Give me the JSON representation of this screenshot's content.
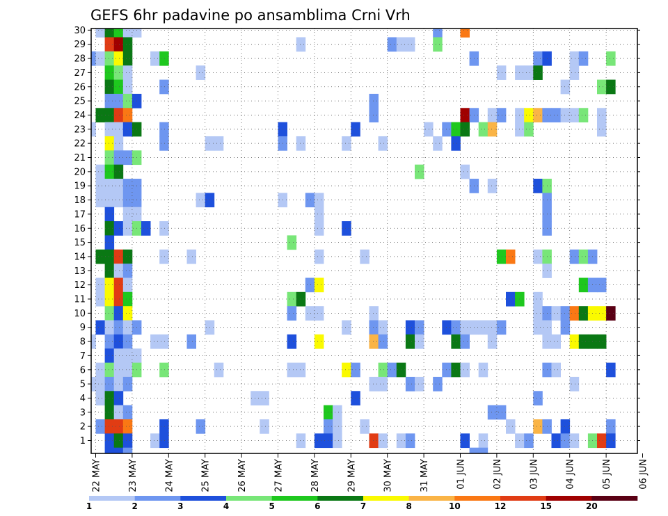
{
  "chart_data": {
    "type": "heatmap",
    "title": "GEFS 6hr padavine po ansamblima Crni Vrh",
    "xlabel": "",
    "ylabel": "",
    "x_tick_labels": [
      "22 MAY",
      "23 MAY",
      "24 MAY",
      "25 MAY",
      "26 MAY",
      "27 MAY",
      "28 MAY",
      "29 MAY",
      "30 MAY",
      "31 MAY",
      "01 JUN",
      "02 JUN",
      "03 JUN",
      "04 JUN",
      "05 JUN",
      "06 JUN"
    ],
    "y_tick_labels": [
      "1",
      "2",
      "3",
      "4",
      "5",
      "6",
      "7",
      "8",
      "9",
      "10",
      "11",
      "12",
      "13",
      "14",
      "15",
      "16",
      "17",
      "18",
      "19",
      "20",
      "21",
      "22",
      "23",
      "24",
      "25",
      "26",
      "27",
      "28",
      "29",
      "30"
    ],
    "ylim": [
      1,
      30
    ],
    "grid": true,
    "columns_per_day": 4,
    "legend_placement": "bottom",
    "legend": {
      "boundaries": [
        "1",
        "2",
        "3",
        "4",
        "5",
        "6",
        "7",
        "8",
        "10",
        "12",
        "15",
        "20"
      ],
      "colors": [
        "#b4c8f5",
        "#6e96f0",
        "#1e50dc",
        "#78e678",
        "#1ec81e",
        "#0a7814",
        "#fafa00",
        "#fab446",
        "#fa7814",
        "#e13c14",
        "#a00000",
        "#5a0014"
      ]
    },
    "cells": [
      [
        30,
        3,
        0
      ],
      [
        30,
        4,
        8
      ],
      [
        30,
        5,
        3
      ],
      [
        30,
        7,
        1
      ],
      [
        30,
        10,
        2
      ],
      [
        30,
        11,
        3
      ],
      [
        30,
        24,
        4
      ],
      [
        30,
        25,
        1
      ],
      [
        30,
        28,
        0
      ],
      [
        30,
        31,
        0
      ],
      [
        30,
        32,
        2
      ],
      [
        30,
        35,
        2
      ],
      [
        30,
        36,
        3
      ],
      [
        30,
        44,
        2
      ],
      [
        30,
        45,
        0
      ],
      [
        30,
        46,
        0
      ],
      [
        29,
        2,
        0
      ],
      [
        29,
        3,
        5
      ],
      [
        29,
        4,
        4
      ],
      [
        29,
        5,
        0
      ],
      [
        29,
        6,
        0
      ],
      [
        29,
        39,
        1
      ],
      [
        29,
        42,
        8
      ],
      [
        28,
        3,
        9
      ],
      [
        28,
        4,
        10
      ],
      [
        28,
        5,
        5
      ],
      [
        28,
        24,
        0
      ],
      [
        28,
        34,
        1
      ],
      [
        28,
        35,
        0
      ],
      [
        28,
        36,
        0
      ],
      [
        28,
        39,
        3
      ],
      [
        27,
        1,
        1
      ],
      [
        27,
        2,
        0
      ],
      [
        27,
        3,
        3
      ],
      [
        27,
        4,
        6
      ],
      [
        27,
        5,
        5
      ],
      [
        27,
        8,
        0
      ],
      [
        27,
        9,
        4
      ],
      [
        27,
        43,
        1
      ],
      [
        27,
        50,
        1
      ],
      [
        27,
        51,
        2
      ],
      [
        27,
        54,
        0
      ],
      [
        27,
        55,
        1
      ],
      [
        27,
        58,
        3
      ],
      [
        26,
        3,
        4
      ],
      [
        26,
        4,
        3
      ],
      [
        26,
        5,
        0
      ],
      [
        26,
        13,
        0
      ],
      [
        26,
        46,
        0
      ],
      [
        26,
        48,
        0
      ],
      [
        26,
        49,
        0
      ],
      [
        26,
        50,
        5
      ],
      [
        26,
        54,
        0
      ],
      [
        25,
        3,
        5
      ],
      [
        25,
        4,
        4
      ],
      [
        25,
        5,
        0
      ],
      [
        25,
        9,
        1
      ],
      [
        25,
        53,
        0
      ],
      [
        25,
        57,
        3
      ],
      [
        25,
        58,
        5
      ],
      [
        24,
        3,
        1
      ],
      [
        24,
        4,
        1
      ],
      [
        24,
        5,
        3
      ],
      [
        24,
        6,
        2
      ],
      [
        24,
        32,
        1
      ],
      [
        23,
        2,
        5
      ],
      [
        23,
        3,
        5
      ],
      [
        23,
        4,
        9
      ],
      [
        23,
        5,
        8
      ],
      [
        23,
        32,
        1
      ],
      [
        23,
        42,
        10
      ],
      [
        23,
        43,
        1
      ],
      [
        23,
        45,
        0
      ],
      [
        23,
        46,
        1
      ],
      [
        23,
        48,
        0
      ],
      [
        23,
        49,
        6
      ],
      [
        23,
        50,
        7
      ],
      [
        23,
        51,
        1
      ],
      [
        23,
        52,
        1
      ],
      [
        23,
        53,
        0
      ],
      [
        23,
        54,
        0
      ],
      [
        23,
        55,
        3
      ],
      [
        23,
        57,
        0
      ],
      [
        22,
        1,
        0
      ],
      [
        22,
        3,
        0
      ],
      [
        22,
        4,
        0
      ],
      [
        22,
        5,
        2
      ],
      [
        22,
        6,
        5
      ],
      [
        22,
        9,
        1
      ],
      [
        22,
        22,
        2
      ],
      [
        22,
        30,
        2
      ],
      [
        22,
        38,
        0
      ],
      [
        22,
        40,
        1
      ],
      [
        22,
        41,
        4
      ],
      [
        22,
        42,
        5
      ],
      [
        22,
        44,
        3
      ],
      [
        22,
        45,
        7
      ],
      [
        22,
        48,
        0
      ],
      [
        22,
        49,
        3
      ],
      [
        22,
        57,
        0
      ],
      [
        21,
        3,
        6
      ],
      [
        21,
        4,
        0
      ],
      [
        21,
        9,
        1
      ],
      [
        21,
        14,
        0
      ],
      [
        21,
        15,
        0
      ],
      [
        21,
        22,
        1
      ],
      [
        21,
        24,
        0
      ],
      [
        21,
        29,
        0
      ],
      [
        21,
        33,
        0
      ],
      [
        21,
        39,
        0
      ],
      [
        21,
        41,
        2
      ],
      [
        20,
        3,
        3
      ],
      [
        20,
        4,
        1
      ],
      [
        20,
        5,
        1
      ],
      [
        20,
        6,
        3
      ],
      [
        19,
        2,
        0
      ],
      [
        19,
        3,
        4
      ],
      [
        19,
        4,
        5
      ],
      [
        19,
        37,
        3
      ],
      [
        19,
        42,
        0
      ],
      [
        18,
        2,
        0
      ],
      [
        18,
        3,
        0
      ],
      [
        18,
        4,
        0
      ],
      [
        18,
        5,
        1
      ],
      [
        18,
        6,
        1
      ],
      [
        18,
        43,
        1
      ],
      [
        18,
        45,
        0
      ],
      [
        18,
        50,
        2
      ],
      [
        18,
        51,
        3
      ],
      [
        17,
        2,
        0
      ],
      [
        17,
        3,
        0
      ],
      [
        17,
        4,
        0
      ],
      [
        17,
        5,
        1
      ],
      [
        17,
        6,
        1
      ],
      [
        17,
        13,
        0
      ],
      [
        17,
        14,
        2
      ],
      [
        17,
        22,
        0
      ],
      [
        17,
        25,
        1
      ],
      [
        17,
        26,
        0
      ],
      [
        17,
        51,
        1
      ],
      [
        16,
        3,
        2
      ],
      [
        16,
        5,
        0
      ],
      [
        16,
        6,
        0
      ],
      [
        16,
        26,
        0
      ],
      [
        16,
        51,
        1
      ],
      [
        15,
        3,
        5
      ],
      [
        15,
        4,
        2
      ],
      [
        15,
        5,
        0
      ],
      [
        15,
        6,
        3
      ],
      [
        15,
        7,
        2
      ],
      [
        15,
        9,
        0
      ],
      [
        15,
        26,
        0
      ],
      [
        15,
        29,
        2
      ],
      [
        15,
        51,
        1
      ],
      [
        14,
        3,
        2
      ],
      [
        14,
        23,
        3
      ],
      [
        13,
        2,
        5
      ],
      [
        13,
        3,
        5
      ],
      [
        13,
        4,
        9
      ],
      [
        13,
        5,
        5
      ],
      [
        13,
        9,
        0
      ],
      [
        13,
        12,
        0
      ],
      [
        13,
        26,
        0
      ],
      [
        13,
        31,
        0
      ],
      [
        13,
        46,
        4
      ],
      [
        13,
        47,
        8
      ],
      [
        13,
        50,
        0
      ],
      [
        13,
        51,
        3
      ],
      [
        13,
        54,
        1
      ],
      [
        13,
        55,
        3
      ],
      [
        13,
        56,
        1
      ],
      [
        12,
        3,
        5
      ],
      [
        12,
        4,
        0
      ],
      [
        12,
        5,
        1
      ],
      [
        12,
        51,
        0
      ],
      [
        11,
        2,
        0
      ],
      [
        11,
        3,
        6
      ],
      [
        11,
        4,
        9
      ],
      [
        11,
        5,
        0
      ],
      [
        11,
        25,
        1
      ],
      [
        11,
        26,
        6
      ],
      [
        11,
        55,
        4
      ],
      [
        11,
        56,
        1
      ],
      [
        11,
        57,
        1
      ],
      [
        10,
        2,
        0
      ],
      [
        10,
        3,
        6
      ],
      [
        10,
        4,
        9
      ],
      [
        10,
        5,
        4
      ],
      [
        10,
        23,
        3
      ],
      [
        10,
        24,
        5
      ],
      [
        10,
        47,
        2
      ],
      [
        10,
        48,
        4
      ],
      [
        10,
        50,
        0
      ],
      [
        9,
        0,
        1
      ],
      [
        9,
        3,
        3
      ],
      [
        9,
        4,
        2
      ],
      [
        9,
        5,
        6
      ],
      [
        9,
        23,
        1
      ],
      [
        9,
        25,
        0
      ],
      [
        9,
        26,
        0
      ],
      [
        9,
        32,
        0
      ],
      [
        9,
        50,
        0
      ],
      [
        9,
        51,
        1
      ],
      [
        9,
        52,
        0
      ],
      [
        9,
        53,
        1
      ],
      [
        9,
        54,
        8
      ],
      [
        9,
        55,
        5
      ],
      [
        9,
        56,
        6
      ],
      [
        9,
        57,
        6
      ],
      [
        9,
        58,
        11
      ],
      [
        8,
        2,
        2
      ],
      [
        8,
        3,
        0
      ],
      [
        8,
        4,
        1
      ],
      [
        8,
        5,
        0
      ],
      [
        8,
        6,
        1
      ],
      [
        8,
        14,
        0
      ],
      [
        8,
        29,
        0
      ],
      [
        8,
        32,
        1
      ],
      [
        8,
        33,
        0
      ],
      [
        8,
        36,
        2
      ],
      [
        8,
        37,
        1
      ],
      [
        8,
        40,
        2
      ],
      [
        8,
        41,
        1
      ],
      [
        8,
        42,
        0
      ],
      [
        8,
        43,
        0
      ],
      [
        8,
        44,
        0
      ],
      [
        8,
        45,
        0
      ],
      [
        8,
        46,
        1
      ],
      [
        8,
        50,
        0
      ],
      [
        8,
        51,
        0
      ],
      [
        8,
        53,
        1
      ],
      [
        7,
        1,
        0
      ],
      [
        7,
        3,
        1
      ],
      [
        7,
        4,
        2
      ],
      [
        7,
        5,
        1
      ],
      [
        7,
        8,
        0
      ],
      [
        7,
        9,
        0
      ],
      [
        7,
        12,
        1
      ],
      [
        7,
        23,
        2
      ],
      [
        7,
        26,
        6
      ],
      [
        7,
        32,
        7
      ],
      [
        7,
        33,
        1
      ],
      [
        7,
        36,
        5
      ],
      [
        7,
        37,
        0
      ],
      [
        7,
        41,
        5
      ],
      [
        7,
        42,
        1
      ],
      [
        7,
        45,
        0
      ],
      [
        7,
        51,
        0
      ],
      [
        7,
        52,
        0
      ],
      [
        7,
        54,
        6
      ],
      [
        7,
        55,
        5
      ],
      [
        7,
        56,
        5
      ],
      [
        7,
        57,
        5
      ],
      [
        6,
        3,
        2
      ],
      [
        6,
        4,
        0
      ],
      [
        6,
        5,
        0
      ],
      [
        6,
        6,
        0
      ],
      [
        5,
        2,
        0
      ],
      [
        5,
        3,
        3
      ],
      [
        5,
        4,
        0
      ],
      [
        5,
        5,
        0
      ],
      [
        5,
        6,
        3
      ],
      [
        5,
        9,
        3
      ],
      [
        5,
        15,
        0
      ],
      [
        5,
        23,
        0
      ],
      [
        5,
        24,
        0
      ],
      [
        5,
        29,
        6
      ],
      [
        5,
        30,
        1
      ],
      [
        5,
        33,
        3
      ],
      [
        5,
        34,
        1
      ],
      [
        5,
        35,
        5
      ],
      [
        5,
        40,
        1
      ],
      [
        5,
        41,
        5
      ],
      [
        5,
        42,
        0
      ],
      [
        5,
        44,
        0
      ],
      [
        5,
        51,
        1
      ],
      [
        5,
        52,
        0
      ],
      [
        5,
        58,
        2
      ],
      [
        4,
        0,
        0
      ],
      [
        4,
        1,
        0
      ],
      [
        4,
        2,
        0
      ],
      [
        4,
        3,
        1
      ],
      [
        4,
        4,
        0
      ],
      [
        4,
        5,
        1
      ],
      [
        4,
        32,
        0
      ],
      [
        4,
        33,
        0
      ],
      [
        4,
        36,
        1
      ],
      [
        4,
        37,
        0
      ],
      [
        4,
        39,
        1
      ],
      [
        4,
        54,
        0
      ],
      [
        3,
        2,
        0
      ],
      [
        3,
        3,
        5
      ],
      [
        3,
        4,
        2
      ],
      [
        3,
        19,
        0
      ],
      [
        3,
        20,
        0
      ],
      [
        3,
        30,
        2
      ],
      [
        3,
        50,
        1
      ],
      [
        2,
        3,
        5
      ],
      [
        2,
        4,
        0
      ],
      [
        2,
        5,
        1
      ],
      [
        2,
        27,
        4
      ],
      [
        2,
        28,
        0
      ],
      [
        2,
        45,
        1
      ],
      [
        2,
        46,
        1
      ],
      [
        1,
        0,
        0
      ],
      [
        1,
        2,
        1
      ],
      [
        1,
        3,
        9
      ],
      [
        1,
        4,
        9
      ],
      [
        1,
        5,
        8
      ],
      [
        1,
        9,
        2
      ],
      [
        1,
        13,
        1
      ],
      [
        1,
        20,
        0
      ],
      [
        1,
        27,
        1
      ],
      [
        1,
        28,
        0
      ],
      [
        1,
        31,
        0
      ],
      [
        1,
        47,
        0
      ],
      [
        1,
        50,
        7
      ],
      [
        1,
        51,
        1
      ],
      [
        1,
        53,
        2
      ],
      [
        1,
        58,
        1
      ],
      [
        0,
        3,
        2
      ],
      [
        0,
        4,
        5
      ],
      [
        0,
        5,
        2
      ],
      [
        0,
        8,
        0
      ],
      [
        0,
        9,
        2
      ],
      [
        0,
        24,
        0
      ],
      [
        0,
        26,
        2
      ],
      [
        0,
        27,
        2
      ],
      [
        0,
        28,
        0
      ],
      [
        0,
        32,
        9
      ],
      [
        0,
        33,
        0
      ],
      [
        0,
        35,
        0
      ],
      [
        0,
        36,
        1
      ],
      [
        0,
        42,
        2
      ],
      [
        0,
        44,
        0
      ],
      [
        0,
        48,
        0
      ],
      [
        0,
        49,
        1
      ],
      [
        0,
        52,
        2
      ],
      [
        0,
        53,
        1
      ],
      [
        0,
        54,
        0
      ],
      [
        0,
        56,
        3
      ],
      [
        0,
        57,
        9
      ],
      [
        0,
        58,
        2
      ],
      [
        -1,
        3,
        2
      ],
      [
        -1,
        4,
        2
      ],
      [
        -1,
        5,
        1
      ],
      [
        -1,
        43,
        1
      ],
      [
        -1,
        44,
        1
      ]
    ]
  }
}
